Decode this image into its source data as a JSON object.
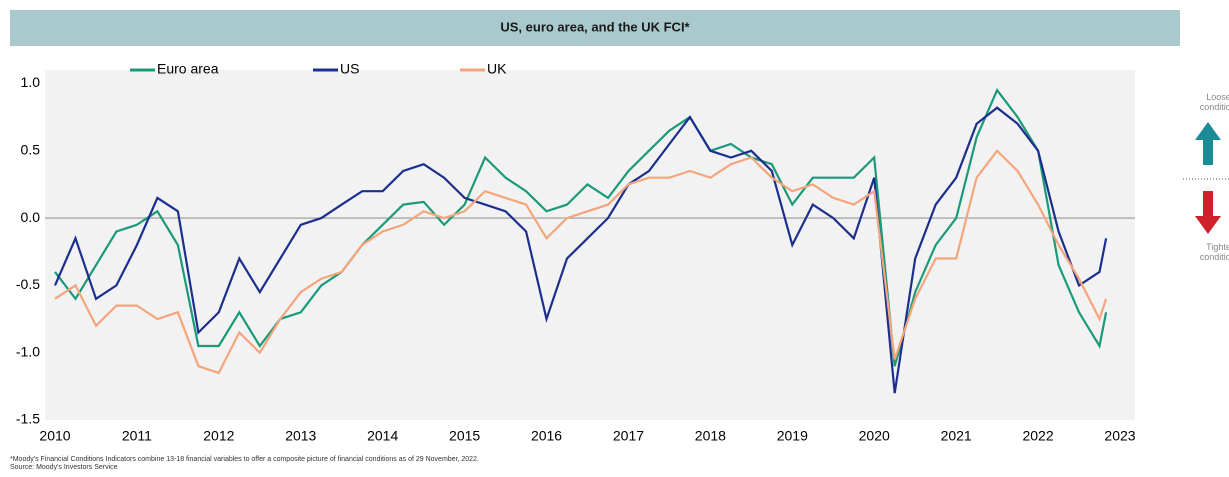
{
  "chart_data": {
    "type": "line",
    "title": "US, euro area, and the UK FCI*",
    "side_notes": [
      "Looser conditions",
      "Tighter conditions"
    ],
    "footnote": "*Moody's Financial Conditions Indicators combine 13-18 financial variables to offer a composite picture of financial conditions as of 29 November, 2022.",
    "source": "Source: Moody's Investors Service",
    "x": [
      2010,
      2010.25,
      2010.5,
      2010.75,
      2011,
      2011.25,
      2011.5,
      2011.75,
      2012,
      2012.25,
      2012.5,
      2012.75,
      2013,
      2013.25,
      2013.5,
      2013.75,
      2014,
      2014.25,
      2014.5,
      2014.75,
      2015,
      2015.25,
      2015.5,
      2015.75,
      2016,
      2016.25,
      2016.5,
      2016.75,
      2017,
      2017.25,
      2017.5,
      2017.75,
      2018,
      2018.25,
      2018.5,
      2018.75,
      2019,
      2019.25,
      2019.5,
      2019.75,
      2020,
      2020.25,
      2020.5,
      2020.75,
      2021,
      2021.25,
      2021.5,
      2021.75,
      2022,
      2022.25,
      2022.5,
      2022.75,
      2022.83
    ],
    "series": [
      {
        "name": "Euro area",
        "color": "#1a9a78",
        "values": [
          -0.4,
          -0.6,
          -0.35,
          -0.1,
          -0.05,
          0.05,
          -0.2,
          -0.95,
          -0.95,
          -0.7,
          -0.95,
          -0.75,
          -0.7,
          -0.5,
          -0.4,
          -0.2,
          -0.05,
          0.1,
          0.12,
          -0.05,
          0.1,
          0.45,
          0.3,
          0.2,
          0.05,
          0.1,
          0.25,
          0.15,
          0.35,
          0.5,
          0.65,
          0.75,
          0.5,
          0.55,
          0.45,
          0.4,
          0.1,
          0.3,
          0.3,
          0.3,
          0.45,
          -1.1,
          -0.55,
          -0.2,
          0.0,
          0.6,
          0.95,
          0.75,
          0.5,
          -0.35,
          -0.7,
          -0.95,
          -0.7
        ]
      },
      {
        "name": "US",
        "color": "#1c2f8f",
        "values": [
          -0.5,
          -0.15,
          -0.6,
          -0.5,
          -0.2,
          0.15,
          0.05,
          -0.85,
          -0.7,
          -0.3,
          -0.55,
          -0.3,
          -0.05,
          0.0,
          0.1,
          0.2,
          0.2,
          0.35,
          0.4,
          0.3,
          0.15,
          0.1,
          0.05,
          -0.1,
          -0.75,
          -0.3,
          -0.15,
          0.0,
          0.25,
          0.35,
          0.55,
          0.75,
          0.5,
          0.45,
          0.5,
          0.35,
          -0.2,
          0.1,
          0.0,
          -0.15,
          0.3,
          -1.3,
          -0.3,
          0.1,
          0.3,
          0.7,
          0.82,
          0.7,
          0.5,
          -0.1,
          -0.5,
          -0.4,
          -0.15
        ]
      },
      {
        "name": "UK",
        "color": "#f4a57c",
        "values": [
          -0.6,
          -0.5,
          -0.8,
          -0.65,
          -0.65,
          -0.75,
          -0.7,
          -1.1,
          -1.15,
          -0.85,
          -1.0,
          -0.75,
          -0.55,
          -0.45,
          -0.4,
          -0.2,
          -0.1,
          -0.05,
          0.05,
          0.0,
          0.05,
          0.2,
          0.15,
          0.1,
          -0.15,
          0.0,
          0.05,
          0.1,
          0.25,
          0.3,
          0.3,
          0.35,
          0.3,
          0.4,
          0.45,
          0.3,
          0.2,
          0.25,
          0.15,
          0.1,
          0.2,
          -1.05,
          -0.6,
          -0.3,
          -0.3,
          0.3,
          0.5,
          0.35,
          0.1,
          -0.2,
          -0.45,
          -0.75,
          -0.6
        ]
      }
    ],
    "xlim": [
      2010,
      2023
    ],
    "xticks": [
      2010,
      2011,
      2012,
      2013,
      2014,
      2015,
      2016,
      2017,
      2018,
      2019,
      2020,
      2021,
      2022,
      2023
    ],
    "ylim": [
      -1.5,
      1.1
    ],
    "yticks": [
      {
        "value": 1,
        "label": "1.0"
      },
      0.5,
      {
        "value": 0,
        "label": "0.0"
      },
      -0.5,
      {
        "value": -1,
        "label": "-1.0"
      },
      -1.5
    ],
    "baseline": 0,
    "legend": "top"
  }
}
